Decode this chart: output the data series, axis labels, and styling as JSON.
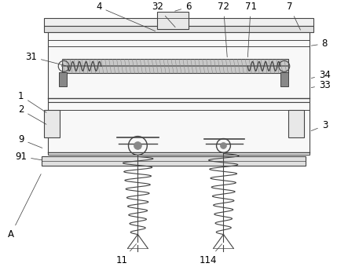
{
  "background_color": "#ffffff",
  "line_color": "#444444",
  "label_color": "#000000",
  "fig_width": 4.43,
  "fig_height": 3.4,
  "dpi": 100
}
